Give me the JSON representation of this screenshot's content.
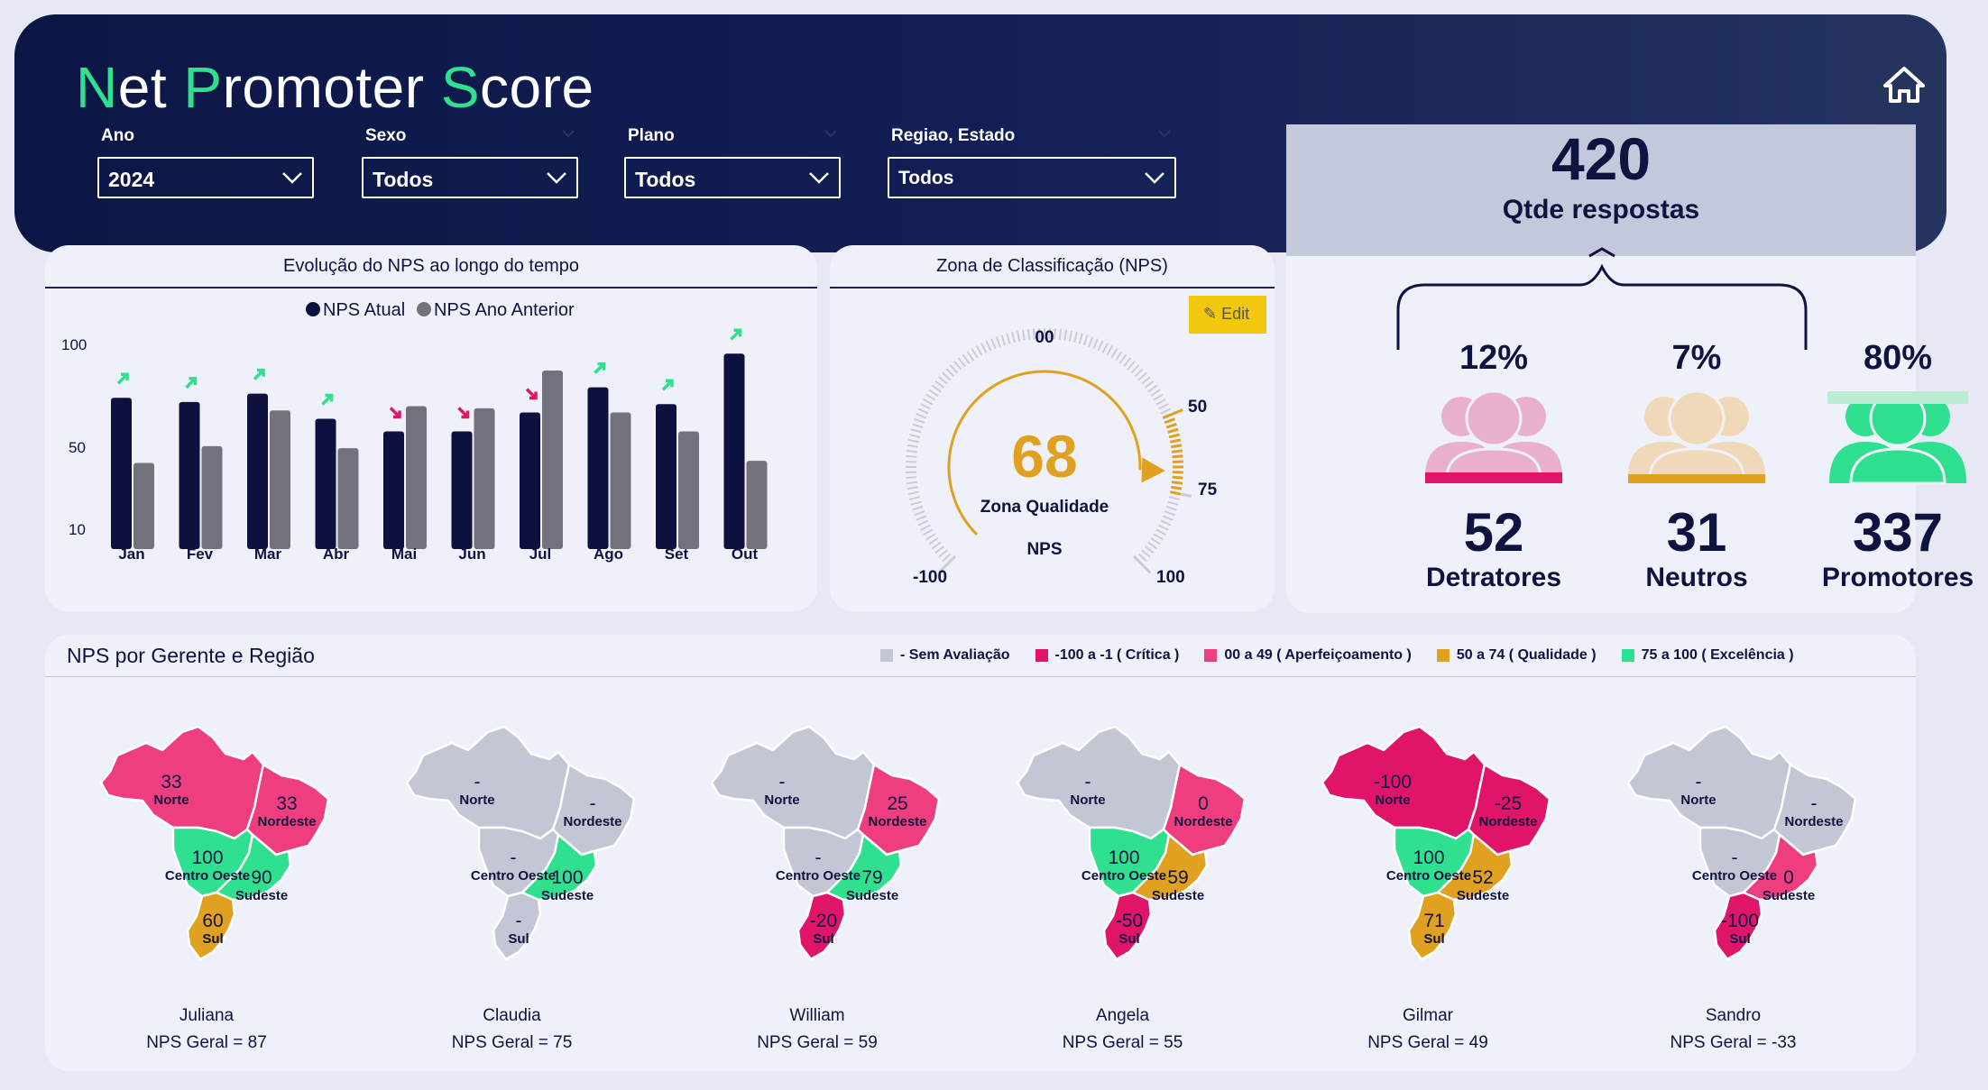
{
  "header": {
    "title_parts": [
      {
        "accent": "N",
        "rest": "et "
      },
      {
        "accent": "P",
        "rest": "romoter "
      },
      {
        "accent": "S",
        "rest": "core"
      }
    ]
  },
  "filters": [
    {
      "label": "Ano",
      "value": "2024"
    },
    {
      "label": "Sexo",
      "value": "Todos"
    },
    {
      "label": "Plano",
      "value": "Todos"
    },
    {
      "label": "Regiao, Estado",
      "value": "Todos"
    }
  ],
  "evolution": {
    "title": "Evolução do NPS ao longo do tempo",
    "legend": [
      "NPS Atual",
      "NPS Ano Anterior"
    ],
    "colors": {
      "atual": "#0e1040",
      "anterior": "#72727f",
      "up": "#2fe08e",
      "down": "#e0156a"
    }
  },
  "chart_data": {
    "type": "bar",
    "categories": [
      "Jan",
      "Fev",
      "Mar",
      "Abr",
      "Mai",
      "Jun",
      "Jul",
      "Ago",
      "Set",
      "Out"
    ],
    "series": [
      {
        "name": "NPS Atual",
        "values": [
          72,
          70,
          74,
          62,
          56,
          56,
          65,
          77,
          69,
          93
        ]
      },
      {
        "name": "NPS Ano Anterior",
        "values": [
          41,
          49,
          66,
          48,
          68,
          67,
          85,
          65,
          56,
          42
        ]
      }
    ],
    "trend": [
      "up",
      "up",
      "up",
      "up",
      "down",
      "down",
      "down",
      "up",
      "up",
      "up"
    ],
    "ytick_labels": [
      "100",
      "50",
      "10"
    ],
    "ylim": [
      0,
      100
    ]
  },
  "gauge": {
    "title": "Zona de Classificação (NPS)",
    "value": "68",
    "value_num": 68,
    "zone": "Zona Qualidade",
    "metric": "NPS",
    "labels": {
      "top": "00",
      "l50": "50",
      "l75": "75",
      "min": "-100",
      "max": "100"
    },
    "edit_label": "✎ Edit",
    "color": "#e0a020"
  },
  "responses": {
    "total": "420",
    "total_label": "Qtde respostas",
    "segments": [
      {
        "pct": "12%",
        "count": "52",
        "label": "Detratores",
        "color": "#e8b0cc",
        "bar": "#e0156a"
      },
      {
        "pct": "7%",
        "count": "31",
        "label": "Neutros",
        "color": "#efd9b8",
        "bar": "#e0a020"
      },
      {
        "pct": "80%",
        "count": "337",
        "label": "Promotores",
        "color": "#2fe08e",
        "bar": "#2fe08e"
      }
    ]
  },
  "maps": {
    "title": "NPS por Gerente e Região",
    "legend": [
      {
        "label": "- Sem Avaliação",
        "color": "#c3c6d4"
      },
      {
        "label": "-100 a -1  ( Crítica )",
        "color": "#e0156a"
      },
      {
        "label": "00 a 49  ( Aperfeiçoamento )",
        "color": "#ef3e7f"
      },
      {
        "label": "50 a 74  ( Qualidade )",
        "color": "#e0a020"
      },
      {
        "label": "75 a 100  ( Excelência )",
        "color": "#2fe08e"
      }
    ],
    "regions": [
      "Norte",
      "Nordeste",
      "Centro Oeste",
      "Sudeste",
      "Sul"
    ],
    "managers": [
      {
        "name": "Juliana",
        "geral": "NPS Geral = 87",
        "values": [
          "33",
          "33",
          "100",
          "90",
          "60"
        ]
      },
      {
        "name": "Claudia",
        "geral": "NPS Geral = 75",
        "values": [
          "-",
          "-",
          "-",
          "100",
          "-"
        ]
      },
      {
        "name": "William",
        "geral": "NPS Geral = 59",
        "values": [
          "-",
          "25",
          "-",
          "79",
          "-20"
        ]
      },
      {
        "name": "Angela",
        "geral": "NPS Geral = 55",
        "values": [
          "-",
          "0",
          "100",
          "59",
          "-50"
        ]
      },
      {
        "name": "Gilmar",
        "geral": "NPS Geral = 49",
        "values": [
          "-100",
          "-25",
          "100",
          "52",
          "71"
        ]
      },
      {
        "name": "Sandro",
        "geral": "NPS Geral = -33",
        "values": [
          "-",
          "-",
          "-",
          "0",
          "-100"
        ]
      }
    ]
  }
}
